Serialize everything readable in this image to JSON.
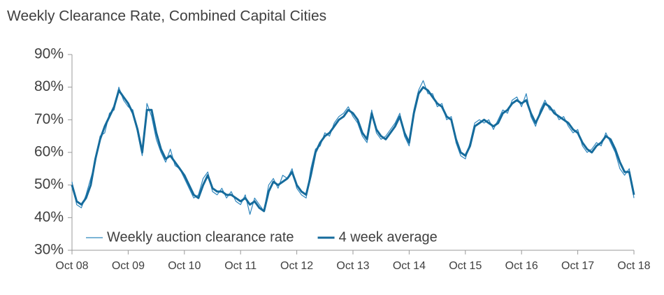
{
  "chart_data": {
    "type": "line",
    "title": "Weekly Clearance Rate, Combined Capital Cities",
    "categories": [
      "Oct 08",
      null,
      null,
      null,
      null,
      null,
      null,
      null,
      null,
      null,
      null,
      null,
      "Oct 09",
      null,
      null,
      null,
      null,
      null,
      null,
      null,
      null,
      null,
      null,
      null,
      "Oct 10",
      null,
      null,
      null,
      null,
      null,
      null,
      null,
      null,
      null,
      null,
      null,
      "Oct 11",
      null,
      null,
      null,
      null,
      null,
      null,
      null,
      null,
      null,
      null,
      null,
      "Oct 12",
      null,
      null,
      null,
      null,
      null,
      null,
      null,
      null,
      null,
      null,
      null,
      "Oct 13",
      null,
      null,
      null,
      null,
      null,
      null,
      null,
      null,
      null,
      null,
      null,
      "Oct 14",
      null,
      null,
      null,
      null,
      null,
      null,
      null,
      null,
      null,
      null,
      null,
      "Oct 15",
      null,
      null,
      null,
      null,
      null,
      null,
      null,
      null,
      null,
      null,
      null,
      "Oct 16",
      null,
      null,
      null,
      null,
      null,
      null,
      null,
      null,
      null,
      null,
      null,
      "Oct 17",
      null,
      null,
      null,
      null,
      null,
      null,
      null,
      null,
      null,
      null,
      null,
      "Oct 18"
    ],
    "series": [
      {
        "name": "Weekly auction clearance rate",
        "color": "#2f86bd",
        "width": 1.2,
        "values": [
          51,
          44,
          43,
          47,
          52,
          57,
          65,
          66,
          72,
          73,
          80,
          76,
          74,
          73,
          66,
          59,
          75,
          71,
          64,
          60,
          57,
          61,
          56,
          55,
          52,
          49,
          46,
          47,
          52,
          54,
          48,
          47,
          49,
          46,
          48,
          45,
          44,
          47,
          41,
          46,
          44,
          42,
          50,
          52,
          49,
          53,
          52,
          55,
          49,
          47,
          46,
          55,
          61,
          62,
          66,
          65,
          69,
          71,
          72,
          74,
          71,
          69,
          65,
          63,
          73,
          66,
          64,
          65,
          67,
          69,
          72,
          65,
          62,
          73,
          79,
          82,
          78,
          78,
          74,
          75,
          70,
          71,
          63,
          59,
          58,
          63,
          69,
          70,
          69,
          70,
          67,
          70,
          73,
          72,
          76,
          77,
          74,
          78,
          71,
          68,
          73,
          76,
          73,
          73,
          70,
          71,
          68,
          66,
          67,
          62,
          60,
          61,
          63,
          62,
          66,
          63,
          60,
          55,
          53,
          55,
          46
        ]
      },
      {
        "name": "4 week average",
        "color": "#156b9c",
        "width": 3,
        "values": [
          50,
          45,
          44,
          46,
          50,
          58,
          64,
          68,
          71,
          74,
          79,
          77,
          75,
          72,
          67,
          60,
          73,
          73,
          66,
          61,
          58,
          59,
          57,
          55,
          53,
          50,
          47,
          46,
          50,
          53,
          49,
          48,
          48,
          47,
          47,
          46,
          45,
          46,
          44,
          45,
          43,
          42,
          48,
          51,
          50,
          51,
          52,
          54,
          50,
          48,
          47,
          53,
          60,
          63,
          65,
          66,
          68,
          70,
          71,
          73,
          72,
          70,
          66,
          64,
          72,
          67,
          65,
          64,
          66,
          68,
          71,
          66,
          63,
          72,
          78,
          80,
          79,
          77,
          75,
          74,
          71,
          70,
          64,
          60,
          59,
          62,
          68,
          69,
          70,
          69,
          68,
          69,
          72,
          73,
          75,
          76,
          75,
          76,
          72,
          69,
          72,
          75,
          74,
          72,
          71,
          70,
          69,
          67,
          66,
          63,
          61,
          60,
          62,
          63,
          65,
          64,
          61,
          57,
          54,
          54,
          47
        ]
      }
    ],
    "ylim": [
      30,
      90
    ],
    "yticks": [
      {
        "value": 30,
        "label": "30%"
      },
      {
        "value": 40,
        "label": "40%"
      },
      {
        "value": 50,
        "label": "50%"
      },
      {
        "value": 60,
        "label": "60%"
      },
      {
        "value": 70,
        "label": "70%"
      },
      {
        "value": 80,
        "label": "80%"
      },
      {
        "value": 90,
        "label": "90%"
      }
    ],
    "grid": false,
    "legend": "lower left"
  }
}
